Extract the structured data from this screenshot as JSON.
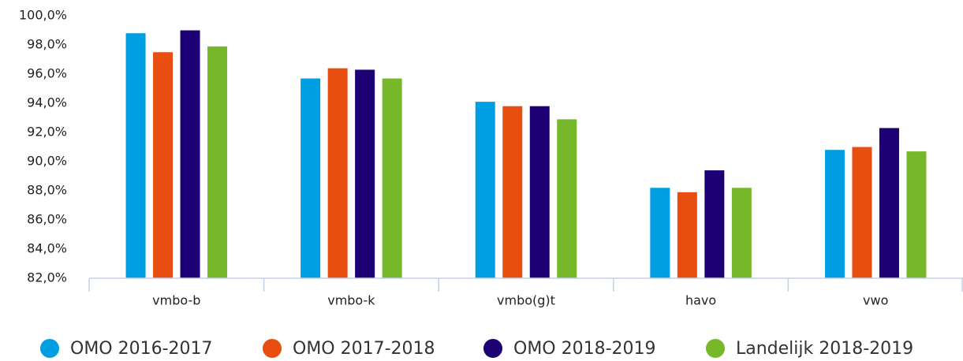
{
  "chart_data": {
    "type": "bar",
    "categories": [
      "vmbo-b",
      "vmbo-k",
      "vmbo(g)t",
      "havo",
      "vwo"
    ],
    "series": [
      {
        "name": "OMO 2016-2017",
        "color": "#009fe3",
        "values": [
          98.8,
          95.7,
          94.1,
          88.2,
          90.8
        ]
      },
      {
        "name": "OMO 2017-2018",
        "color": "#e84e0f",
        "values": [
          97.5,
          96.4,
          93.8,
          87.9,
          91.0
        ]
      },
      {
        "name": "OMO 2018-2019",
        "color": "#1d0073",
        "values": [
          99.0,
          96.3,
          93.8,
          89.4,
          92.3
        ]
      },
      {
        "name": "Landelijk 2018-2019",
        "color": "#76b82a",
        "values": [
          97.9,
          95.7,
          92.9,
          88.2,
          90.7
        ]
      }
    ],
    "ylim": [
      82,
      100
    ],
    "yticks": [
      {
        "value": 82,
        "label": "82,0%"
      },
      {
        "value": 84,
        "label": "84,0%"
      },
      {
        "value": 86,
        "label": "86,0%"
      },
      {
        "value": 88,
        "label": "88,0%"
      },
      {
        "value": 90,
        "label": "90,0%"
      },
      {
        "value": 92,
        "label": "92,0%"
      },
      {
        "value": 94,
        "label": "94,0%"
      },
      {
        "value": 96,
        "label": "96,0%"
      },
      {
        "value": 98,
        "label": "98,0%"
      },
      {
        "value": 100,
        "label": "100,0%"
      }
    ],
    "grid": false,
    "legend": "bottom"
  }
}
